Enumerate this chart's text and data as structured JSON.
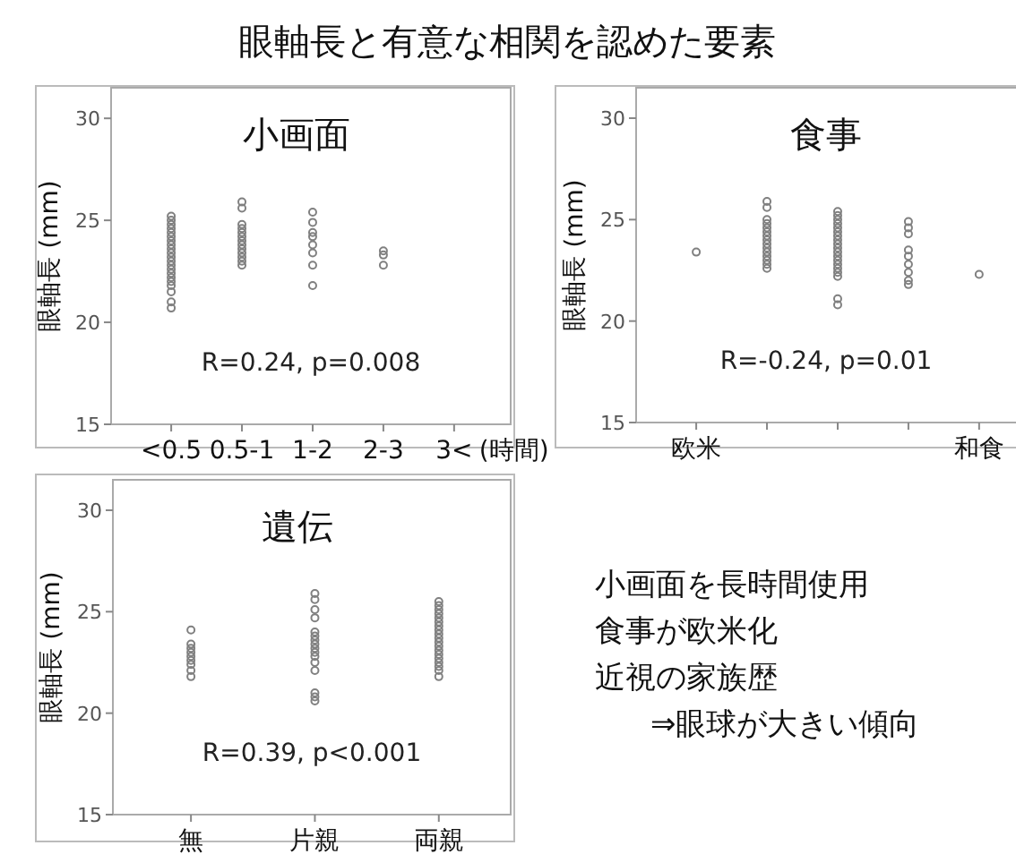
{
  "chart_data": [
    {
      "type": "other",
      "title": "眼軸長と有意な相関を認めた要素",
      "annotations": [
        "小画面を長時間使用",
        "食事が欧米化",
        "近視の家族歴",
        "⇒眼球が大きい傾向"
      ]
    },
    {
      "type": "scatter",
      "title": "小画面",
      "ylabel": "眼軸長 (mm)",
      "xlabel": "(時間)",
      "categories": [
        "<0.5",
        "0.5-1",
        "1-2",
        "2-3",
        "3<"
      ],
      "ylim": [
        15,
        31.5
      ],
      "yticks": [
        15,
        20,
        25,
        30
      ],
      "marker": "circle",
      "grid": false,
      "annotations": [
        "R=0.24, p=0.008"
      ],
      "series": [
        {
          "color": "#808080",
          "x": [
            "<0.5",
            "<0.5",
            "<0.5",
            "<0.5",
            "<0.5",
            "<0.5",
            "<0.5",
            "<0.5",
            "<0.5",
            "<0.5",
            "<0.5",
            "<0.5",
            "<0.5",
            "<0.5",
            "<0.5",
            "<0.5",
            "<0.5",
            "<0.5",
            "<0.5",
            "<0.5",
            "<0.5",
            "0.5-1",
            "0.5-1",
            "0.5-1",
            "0.5-1",
            "0.5-1",
            "0.5-1",
            "0.5-1",
            "0.5-1",
            "0.5-1",
            "0.5-1",
            "0.5-1",
            "0.5-1",
            "0.5-1",
            "1-2",
            "1-2",
            "1-2",
            "1-2",
            "1-2",
            "1-2",
            "1-2",
            "1-2",
            "2-3",
            "2-3",
            "2-3"
          ],
          "values": [
            25.2,
            25.0,
            24.8,
            24.6,
            24.4,
            24.2,
            24.0,
            23.8,
            23.6,
            23.4,
            23.2,
            23.0,
            22.8,
            22.6,
            22.4,
            22.2,
            22.0,
            21.8,
            21.5,
            21.0,
            20.7,
            25.9,
            25.6,
            24.8,
            24.6,
            24.4,
            24.2,
            24.0,
            23.8,
            23.6,
            23.4,
            23.2,
            23.0,
            22.8,
            25.4,
            24.9,
            24.4,
            24.2,
            23.8,
            23.4,
            22.8,
            21.8,
            23.5,
            23.3,
            22.8
          ]
        }
      ]
    },
    {
      "type": "scatter",
      "title": "食事",
      "ylabel": "眼軸長 (mm)",
      "categories": [
        "欧米",
        null,
        null,
        null,
        "和食"
      ],
      "ylim": [
        15,
        31.5
      ],
      "yticks": [
        15,
        20,
        25,
        30
      ],
      "marker": "circle",
      "grid": false,
      "annotations": [
        "R=-0.24, p=0.01"
      ],
      "series": [
        {
          "color": "#808080",
          "values": [
            23.4,
            25.9,
            25.4,
            24.9,
            22.3
          ]
        },
        {
          "color": "#808080",
          "values": [
            null,
            25.6,
            25.2,
            24.6,
            null
          ]
        },
        {
          "color": "#808080",
          "values": [
            null,
            25.0,
            25.0,
            24.3,
            null
          ]
        },
        {
          "color": "#808080",
          "values": [
            null,
            24.8,
            24.8,
            23.5,
            null
          ]
        },
        {
          "color": "#808080",
          "values": [
            null,
            24.6,
            24.6,
            23.2,
            null
          ]
        },
        {
          "color": "#808080",
          "values": [
            null,
            24.4,
            24.4,
            22.8,
            null
          ]
        },
        {
          "color": "#808080",
          "values": [
            null,
            24.2,
            24.2,
            22.4,
            null
          ]
        },
        {
          "color": "#808080",
          "values": [
            null,
            24.0,
            24.0,
            22.0,
            null
          ]
        },
        {
          "color": "#808080",
          "values": [
            null,
            23.8,
            23.8,
            21.8,
            null
          ]
        },
        {
          "color": "#808080",
          "values": [
            null,
            23.6,
            23.6,
            null,
            null
          ]
        },
        {
          "color": "#808080",
          "values": [
            null,
            23.4,
            23.4,
            null,
            null
          ]
        },
        {
          "color": "#808080",
          "values": [
            null,
            23.2,
            23.2,
            null,
            null
          ]
        },
        {
          "color": "#808080",
          "values": [
            null,
            23.0,
            23.0,
            null,
            null
          ]
        },
        {
          "color": "#808080",
          "values": [
            null,
            22.8,
            22.8,
            null,
            null
          ]
        },
        {
          "color": "#808080",
          "values": [
            null,
            22.6,
            22.6,
            null,
            null
          ]
        },
        {
          "color": "#808080",
          "values": [
            null,
            null,
            22.4,
            null,
            null
          ]
        },
        {
          "color": "#808080",
          "values": [
            null,
            null,
            22.2,
            null,
            null
          ]
        },
        {
          "color": "#808080",
          "values": [
            null,
            null,
            21.1,
            null,
            null
          ]
        },
        {
          "color": "#808080",
          "values": [
            null,
            null,
            20.8,
            null,
            null
          ]
        }
      ]
    },
    {
      "type": "scatter",
      "title": "遺伝",
      "ylabel": "眼軸長 (mm)",
      "categories": [
        "無",
        "片親",
        "両親"
      ],
      "ylim": [
        15,
        31.5
      ],
      "yticks": [
        15,
        20,
        25,
        30
      ],
      "marker": "circle",
      "grid": false,
      "annotations": [
        "R=0.39, p<0.001"
      ],
      "series": [
        {
          "color": "#808080",
          "x": [
            "無",
            "無",
            "無",
            "無",
            "無",
            "無",
            "無",
            "無",
            "無",
            "片親",
            "片親",
            "片親",
            "片親",
            "片親",
            "片親",
            "片親",
            "片親",
            "片親",
            "片親",
            "片親",
            "片親",
            "片親",
            "片親",
            "片親",
            "片親",
            "両親",
            "両親",
            "両親",
            "両親",
            "両親",
            "両親",
            "両親",
            "両親",
            "両親",
            "両親",
            "両親",
            "両親",
            "両親",
            "両親",
            "両親",
            "両親",
            "両親",
            "両親",
            "両親"
          ],
          "values": [
            24.1,
            23.4,
            23.2,
            23.0,
            22.8,
            22.6,
            22.4,
            22.1,
            21.8,
            25.9,
            25.6,
            25.1,
            24.7,
            24.0,
            23.8,
            23.6,
            23.4,
            23.2,
            23.0,
            22.8,
            22.5,
            22.1,
            21.0,
            20.8,
            20.6,
            25.5,
            25.3,
            25.1,
            24.9,
            24.7,
            24.5,
            24.3,
            24.1,
            23.9,
            23.7,
            23.5,
            23.3,
            23.1,
            22.9,
            22.7,
            22.5,
            22.3,
            22.1,
            21.8
          ]
        }
      ]
    }
  ]
}
